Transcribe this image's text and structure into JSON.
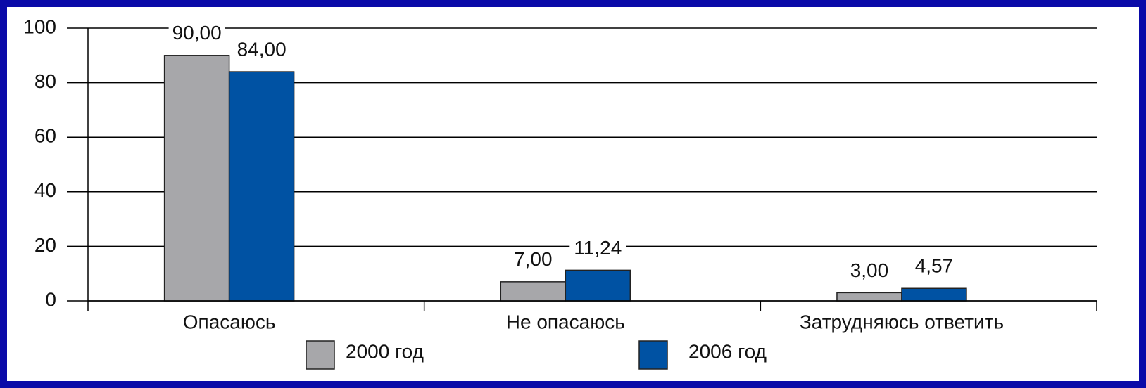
{
  "chart_data": {
    "type": "bar",
    "categories": [
      "Опасаюсь",
      "Не опасаюсь",
      "Затрудняюсь ответить"
    ],
    "series": [
      {
        "name": "2000 год",
        "color": "#a7a7aa",
        "values": [
          90,
          7,
          3
        ],
        "value_labels": [
          "90,00",
          "7,00",
          "3,00"
        ]
      },
      {
        "name": "2006 год",
        "color": "#0052a3",
        "values": [
          84,
          11.24,
          4.57
        ],
        "value_labels": [
          "84,00",
          "11,24",
          "4,57"
        ]
      }
    ],
    "ylim": [
      0,
      100
    ],
    "yticks": [
      0,
      20,
      40,
      60,
      80,
      100
    ],
    "grid": true
  }
}
